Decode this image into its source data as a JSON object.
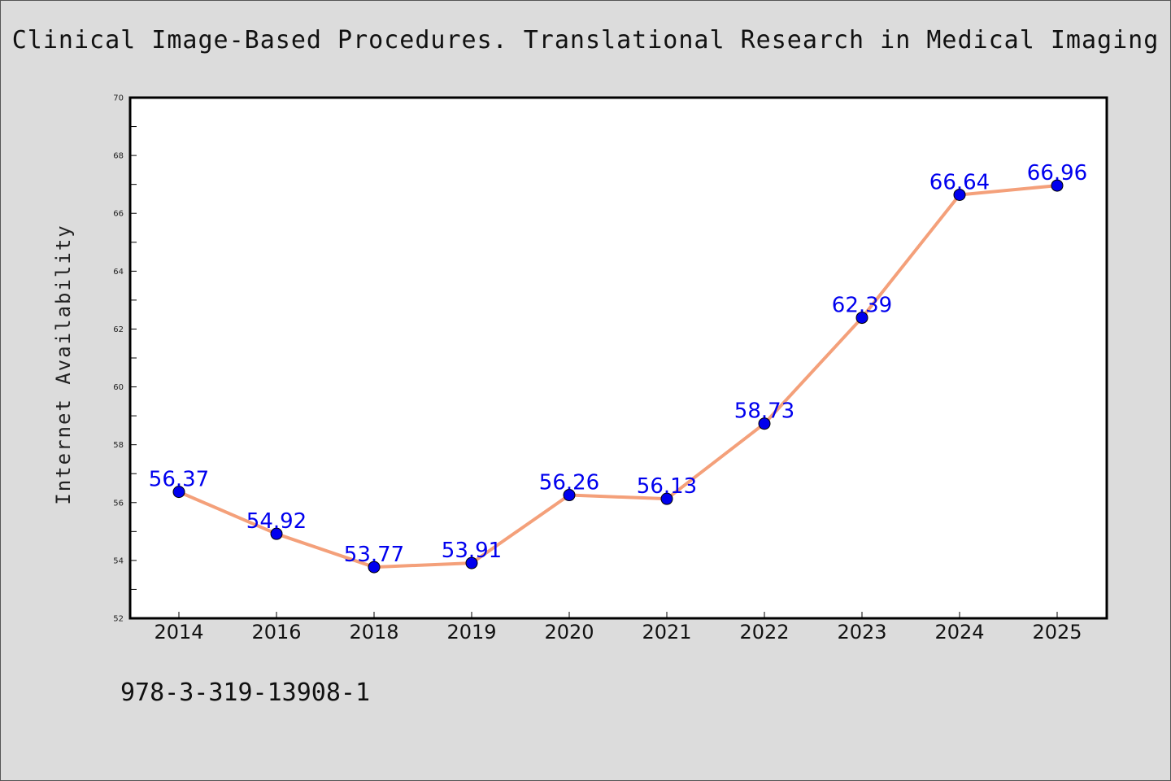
{
  "chart_data": {
    "type": "line",
    "title": "Clinical Image-Based Procedures. Translational Research in Medical Imaging",
    "xlabel": "",
    "ylabel": "Internet Availability",
    "categories": [
      "2014",
      "2016",
      "2018",
      "2019",
      "2020",
      "2021",
      "2022",
      "2023",
      "2024",
      "2025"
    ],
    "values": [
      56.37,
      54.92,
      53.77,
      53.91,
      56.26,
      56.13,
      58.73,
      62.39,
      66.64,
      66.96
    ],
    "data_labels": [
      "56.37",
      "54.92",
      "53.77",
      "53.91",
      "56.26",
      "56.13",
      "58.73",
      "62.39",
      "66.64",
      "66.96"
    ],
    "ylim": [
      52,
      70
    ],
    "yticks": [
      52,
      54,
      56,
      58,
      60,
      62,
      64,
      66,
      68,
      70
    ],
    "grid": false,
    "legend": "none",
    "line_color": "#f4a07a",
    "marker_color": "#0000ee",
    "label_color": "#0000ee"
  },
  "footnote": "978-3-319-13908-1"
}
